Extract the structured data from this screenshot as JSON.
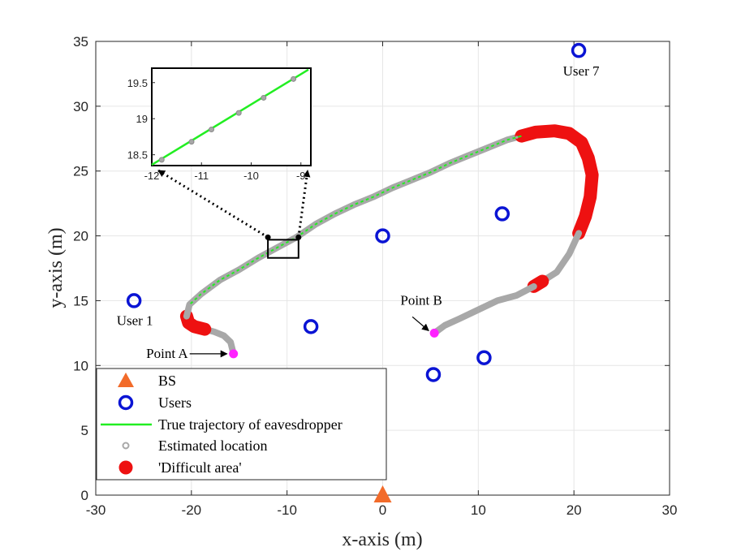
{
  "chart_data": {
    "type": "scatter",
    "xlabel": "x-axis (m)",
    "ylabel": "y-axis (m)",
    "xlim": [
      -30,
      30
    ],
    "ylim": [
      0,
      35
    ],
    "xticks": [
      -30,
      -20,
      -10,
      0,
      10,
      20,
      30
    ],
    "yticks": [
      0,
      5,
      10,
      15,
      20,
      25,
      30,
      35
    ],
    "grid": true,
    "legend_position": "bottom-left",
    "colors": {
      "bs": "#f26b2a",
      "users": "#0a14d4",
      "true_trajectory": "#22ee22",
      "estimated": "#a8a8a8",
      "difficult": "#ee1111",
      "points": "#ff22ff"
    },
    "bs": {
      "x": 0,
      "y": 0
    },
    "users": [
      {
        "x": -26,
        "y": 15,
        "label": "User 1"
      },
      {
        "x": -7.5,
        "y": 13
      },
      {
        "x": 0,
        "y": 20
      },
      {
        "x": 5.3,
        "y": 9.3
      },
      {
        "x": 10.6,
        "y": 10.6
      },
      {
        "x": 12.5,
        "y": 21.7
      },
      {
        "x": 20.5,
        "y": 34.3,
        "label": "User 7"
      }
    ],
    "trajectory_segments": [
      {
        "kind": "estimated",
        "points": [
          [
            -15.6,
            10.9
          ],
          [
            -15.9,
            11.8
          ],
          [
            -16.6,
            12.3
          ],
          [
            -17.6,
            12.6
          ],
          [
            -18.6,
            12.8
          ]
        ]
      },
      {
        "kind": "difficult",
        "points": [
          [
            -18.6,
            12.8
          ],
          [
            -19.7,
            13.0
          ],
          [
            -20.3,
            13.3
          ],
          [
            -20.5,
            13.8
          ]
        ]
      },
      {
        "kind": "estimated",
        "points": [
          [
            -20.5,
            13.8
          ],
          [
            -20.2,
            14.7
          ],
          [
            -19,
            15.5
          ],
          [
            -17,
            16.6
          ],
          [
            -15,
            17.4
          ],
          [
            -13,
            18.3
          ],
          [
            -11,
            19.1
          ],
          [
            -9,
            19.9
          ],
          [
            -7,
            20.9
          ],
          [
            -5,
            21.7
          ],
          [
            -3,
            22.4
          ],
          [
            -1,
            23.0
          ],
          [
            1,
            23.7
          ],
          [
            3,
            24.3
          ],
          [
            5,
            24.9
          ],
          [
            7,
            25.6
          ],
          [
            9,
            26.2
          ],
          [
            11,
            26.8
          ],
          [
            13,
            27.4
          ],
          [
            14.5,
            27.7
          ]
        ]
      },
      {
        "kind": "difficult",
        "points": [
          [
            14.5,
            27.7
          ],
          [
            16,
            28.0
          ],
          [
            18,
            28.1
          ],
          [
            19.5,
            27.9
          ],
          [
            20.8,
            27.2
          ],
          [
            21.5,
            26.0
          ],
          [
            21.9,
            24.7
          ],
          [
            21.7,
            23.0
          ],
          [
            21.2,
            21.5
          ],
          [
            20.5,
            20.2
          ]
        ]
      },
      {
        "kind": "estimated",
        "points": [
          [
            20.5,
            20.2
          ],
          [
            19.5,
            18.6
          ],
          [
            18.2,
            17.2
          ],
          [
            16.7,
            16.5
          ]
        ]
      },
      {
        "kind": "difficult",
        "points": [
          [
            16.7,
            16.5
          ],
          [
            15.8,
            16.1
          ]
        ]
      },
      {
        "kind": "estimated",
        "points": [
          [
            15.8,
            16.1
          ],
          [
            14,
            15.4
          ],
          [
            12,
            15.0
          ],
          [
            10,
            14.3
          ],
          [
            8,
            13.6
          ],
          [
            6.5,
            13.1
          ],
          [
            5.4,
            12.5
          ]
        ]
      }
    ],
    "point_a": {
      "x": -15.6,
      "y": 10.9,
      "label": "Point A"
    },
    "point_b": {
      "x": 5.4,
      "y": 12.5,
      "label": "Point B"
    },
    "legend": [
      {
        "key": "bs",
        "label": "BS"
      },
      {
        "key": "users",
        "label": "Users"
      },
      {
        "key": "true_trajectory",
        "label": "True trajectory of eavesdropper"
      },
      {
        "key": "estimated",
        "label": "Estimated location"
      },
      {
        "key": "difficult",
        "label": "'Difficult area'"
      }
    ],
    "inset": {
      "xlim": [
        -12,
        -8.8
      ],
      "ylim": [
        18.35,
        19.7
      ],
      "xticks": [
        -12,
        -11,
        -10,
        -9
      ],
      "yticks": [
        18.5,
        19,
        19.5
      ],
      "line": [
        [
          -12,
          18.36
        ],
        [
          -8.85,
          19.68
        ]
      ],
      "estimated_points": [
        [
          -11.8,
          18.43
        ],
        [
          -11.2,
          18.68
        ],
        [
          -10.8,
          18.85
        ],
        [
          -10.25,
          19.08
        ],
        [
          -9.75,
          19.29
        ],
        [
          -9.15,
          19.55
        ]
      ]
    },
    "zoom_box": {
      "x0": -12.0,
      "x1": -8.8,
      "y0": 18.3,
      "y1": 19.7
    }
  }
}
